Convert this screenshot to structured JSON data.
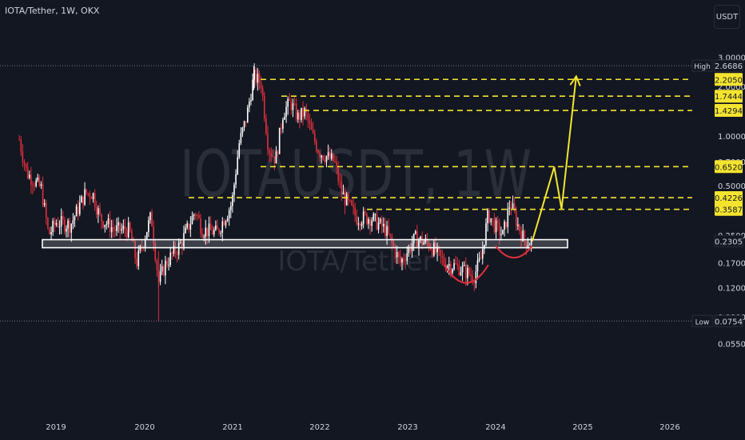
{
  "header": {
    "symbol_title": "IOTA/Tether, 1W, OKX",
    "currency_button": "USDT"
  },
  "watermark": {
    "ticker": "IOTAUSDT, 1W",
    "name": "IOTA/Tether"
  },
  "colors": {
    "background": "#131722",
    "up_candle": "#ffffff",
    "down_candle": "#e0303b",
    "level_line": "#f5e42f",
    "label_bg": "#f5e42f",
    "support_box": "#ffffff",
    "text": "#d1d4dc"
  },
  "chart_data": {
    "type": "candlestick",
    "title": "IOTA/Tether, 1W, OKX",
    "y_scale": "log",
    "y_ticks": [
      "3.0000",
      "2.0000",
      "1.0000",
      "0.7000",
      "0.5000",
      "0.2500",
      "0.1700",
      "0.1200",
      "0.0800",
      "0.0550"
    ],
    "y_tick_values": [
      3.0,
      2.0,
      1.0,
      0.7,
      0.5,
      0.25,
      0.17,
      0.12,
      0.08,
      0.055
    ],
    "x_ticks": [
      "2019",
      "2020",
      "2021",
      "2022",
      "2023",
      "2024",
      "2025",
      "2026"
    ],
    "high_label": "High",
    "high_value": "2.6686",
    "low_label": "Low",
    "low_value": "0.0754",
    "current_price": "0.2305",
    "resistance_levels": [
      {
        "label": "2.2050",
        "value": 2.205
      },
      {
        "label": "1.7444",
        "value": 1.7444
      },
      {
        "label": "1.4294",
        "value": 1.4294
      },
      {
        "label": "0.6520",
        "value": 0.652
      },
      {
        "label": "0.4226",
        "value": 0.4226
      },
      {
        "label": "0.3587",
        "value": 0.3587
      }
    ],
    "support_zone": {
      "low": 0.21,
      "high": 0.235
    },
    "price_path": [
      [
        "2018-08",
        0.95
      ],
      [
        "2018-09",
        0.6
      ],
      [
        "2018-11",
        0.48
      ],
      [
        "2018-12",
        0.25
      ],
      [
        "2019-01",
        0.3
      ],
      [
        "2019-03",
        0.29
      ],
      [
        "2019-05",
        0.45
      ],
      [
        "2019-06",
        0.45
      ],
      [
        "2019-07",
        0.32
      ],
      [
        "2019-09",
        0.27
      ],
      [
        "2019-11",
        0.27
      ],
      [
        "2019-12",
        0.17
      ],
      [
        "2020-02",
        0.33
      ],
      [
        "2020-03",
        0.13
      ],
      [
        "2020-04",
        0.17
      ],
      [
        "2020-06",
        0.22
      ],
      [
        "2020-08",
        0.35
      ],
      [
        "2020-09",
        0.27
      ],
      [
        "2020-11",
        0.26
      ],
      [
        "2021-01",
        0.39
      ],
      [
        "2021-02",
        0.9
      ],
      [
        "2021-03",
        1.3
      ],
      [
        "2021-04",
        2.3
      ],
      [
        "2021-05",
        2.1
      ],
      [
        "2021-06",
        0.85
      ],
      [
        "2021-07",
        0.72
      ],
      [
        "2021-08",
        1.4
      ],
      [
        "2021-09",
        1.6
      ],
      [
        "2021-10",
        1.3
      ],
      [
        "2021-11",
        1.4
      ],
      [
        "2021-12",
        1.0
      ],
      [
        "2022-01",
        0.8
      ],
      [
        "2022-03",
        0.7
      ],
      [
        "2022-04",
        0.45
      ],
      [
        "2022-06",
        0.32
      ],
      [
        "2022-08",
        0.32
      ],
      [
        "2022-10",
        0.27
      ],
      [
        "2022-12",
        0.17
      ],
      [
        "2023-02",
        0.24
      ],
      [
        "2023-04",
        0.22
      ],
      [
        "2023-06",
        0.17
      ],
      [
        "2023-08",
        0.16
      ],
      [
        "2023-10",
        0.14
      ],
      [
        "2023-11",
        0.18
      ],
      [
        "2023-12",
        0.34
      ],
      [
        "2024-01",
        0.28
      ],
      [
        "2024-02",
        0.25
      ],
      [
        "2024-03",
        0.4
      ],
      [
        "2024-04",
        0.29
      ],
      [
        "2024-05",
        0.23
      ],
      [
        "2024-06",
        0.23
      ]
    ],
    "projection_path": [
      [
        "2024-06",
        0.23
      ],
      [
        "2024-09",
        0.65
      ],
      [
        "2024-10",
        0.36
      ],
      [
        "2024-12",
        2.3
      ]
    ],
    "rounding_bottoms": [
      {
        "from": "2023-06",
        "to": "2023-12"
      },
      {
        "from": "2024-01",
        "to": "2024-06"
      }
    ]
  }
}
